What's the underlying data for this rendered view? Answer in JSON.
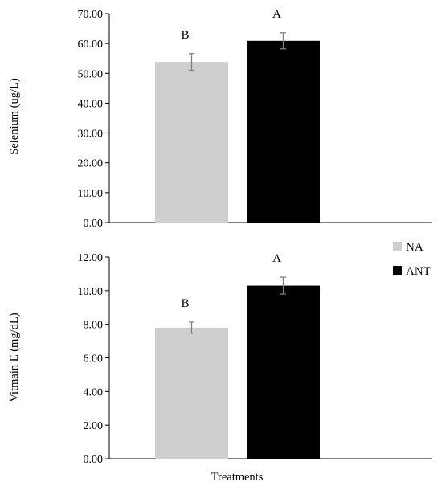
{
  "chart_data": [
    {
      "type": "bar",
      "ylabel": "Selenium (ug/L)",
      "ylim": [
        0,
        70
      ],
      "yticks": [
        "0.00",
        "10.00",
        "20.00",
        "30.00",
        "40.00",
        "50.00",
        "60.00",
        "70.00"
      ],
      "grid": false,
      "series": [
        {
          "name": "NA",
          "value": 53.8,
          "error": 2.8,
          "label": "B",
          "color": "#d0cece"
        },
        {
          "name": "ANT",
          "value": 60.9,
          "error": 2.7,
          "label": "A",
          "color": "#000000"
        }
      ]
    },
    {
      "type": "bar",
      "ylabel": "Vitmain E (mg/dL)",
      "xlabel": "Treatments",
      "ylim": [
        0,
        12
      ],
      "yticks": [
        "0.00",
        "2.00",
        "4.00",
        "6.00",
        "8.00",
        "10.00",
        "12.00"
      ],
      "grid": false,
      "series": [
        {
          "name": "NA",
          "value": 7.8,
          "error": 0.33,
          "label": "B",
          "color": "#d0cece"
        },
        {
          "name": "ANT",
          "value": 10.3,
          "error": 0.5,
          "label": "A",
          "color": "#000000"
        }
      ]
    }
  ],
  "legend": {
    "position": "right",
    "items": [
      {
        "label": "NA",
        "color": "#d0cece"
      },
      {
        "label": "ANT",
        "color": "#000000"
      }
    ]
  }
}
